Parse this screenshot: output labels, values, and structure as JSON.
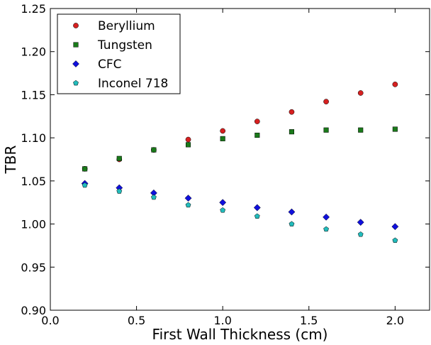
{
  "chart_data": {
    "type": "scatter",
    "xlabel": "First Wall Thickness (cm)",
    "ylabel": "TBR",
    "xlim": [
      0.0,
      2.2
    ],
    "ylim": [
      0.9,
      1.25
    ],
    "x_ticks": [
      "0.0",
      "0.5",
      "1.0",
      "1.5",
      "2.0"
    ],
    "y_ticks": [
      "0.90",
      "0.95",
      "1.00",
      "1.05",
      "1.10",
      "1.15",
      "1.20",
      "1.25"
    ],
    "grid": false,
    "legend_position": "top-left",
    "series": [
      {
        "name": "Beryllium",
        "marker": "circle",
        "color": "#d62020",
        "x": [
          0.2,
          0.4,
          0.6,
          0.8,
          1.0,
          1.2,
          1.4,
          1.6,
          1.8,
          2.0
        ],
        "y": [
          1.064,
          1.075,
          1.086,
          1.098,
          1.108,
          1.119,
          1.13,
          1.142,
          1.152,
          1.162
        ]
      },
      {
        "name": "Tungsten",
        "marker": "square",
        "color": "#1a7a1a",
        "x": [
          0.2,
          0.4,
          0.6,
          0.8,
          1.0,
          1.2,
          1.4,
          1.6,
          1.8,
          2.0
        ],
        "y": [
          1.064,
          1.076,
          1.086,
          1.092,
          1.099,
          1.103,
          1.107,
          1.109,
          1.109,
          1.11
        ]
      },
      {
        "name": "CFC",
        "marker": "diamond",
        "color": "#1010dd",
        "x": [
          0.2,
          0.4,
          0.6,
          0.8,
          1.0,
          1.2,
          1.4,
          1.6,
          1.8,
          2.0
        ],
        "y": [
          1.047,
          1.042,
          1.036,
          1.03,
          1.025,
          1.019,
          1.014,
          1.008,
          1.002,
          0.997
        ]
      },
      {
        "name": "Inconel 718",
        "marker": "pentagon",
        "color": "#22bcbc",
        "x": [
          0.2,
          0.4,
          0.6,
          0.8,
          1.0,
          1.2,
          1.4,
          1.6,
          1.8,
          2.0
        ],
        "y": [
          1.045,
          1.038,
          1.031,
          1.022,
          1.016,
          1.009,
          1.0,
          0.994,
          0.988,
          0.981
        ]
      }
    ]
  }
}
